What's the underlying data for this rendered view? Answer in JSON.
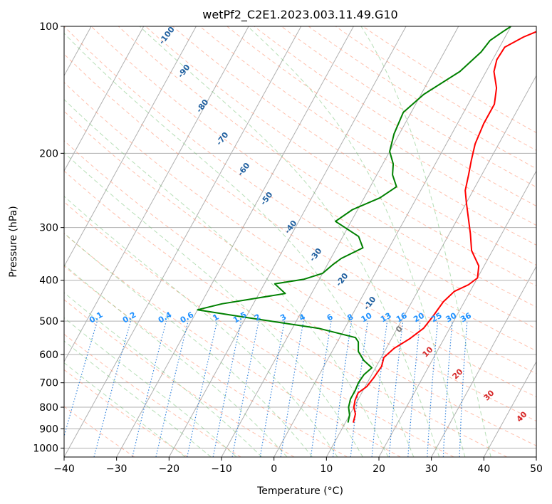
{
  "chart_data": {
    "type": "line",
    "title": "wetPf2_C2E1.2023.003.11.49.G10",
    "xlabel": "Temperature (°C)",
    "ylabel": "Pressure (hPa)",
    "xlim": [
      -40,
      50
    ],
    "ylim": [
      1050,
      100
    ],
    "y_scale": "log",
    "x_ticks": [
      -40,
      -30,
      -20,
      -10,
      0,
      10,
      20,
      30,
      40,
      50
    ],
    "y_ticks": [
      100,
      200,
      300,
      400,
      500,
      600,
      700,
      800,
      900,
      1000
    ],
    "grid": true,
    "series": [
      {
        "name": "",
        "color": "#ff0000",
        "points": [
          [
            11.5,
            870
          ],
          [
            11,
            830
          ],
          [
            10,
            800
          ],
          [
            9.5,
            770
          ],
          [
            9.3,
            740
          ],
          [
            10.3,
            715
          ],
          [
            10.7,
            680
          ],
          [
            11,
            640
          ],
          [
            10.5,
            610
          ],
          [
            11.5,
            580
          ],
          [
            13.5,
            550
          ],
          [
            15,
            520
          ],
          [
            15.5,
            490
          ],
          [
            16,
            450
          ],
          [
            17,
            425
          ],
          [
            19,
            410
          ],
          [
            20,
            395
          ],
          [
            19,
            370
          ],
          [
            16,
            340
          ],
          [
            14,
            310
          ],
          [
            12,
            285
          ],
          [
            10,
            262
          ],
          [
            8.5,
            245
          ],
          [
            7.5,
            225
          ],
          [
            6.5,
            208
          ],
          [
            5.5,
            190
          ],
          [
            5,
            170
          ],
          [
            5,
            153
          ],
          [
            3.7,
            140
          ],
          [
            1.5,
            128
          ],
          [
            0.8,
            120
          ],
          [
            1,
            112
          ],
          [
            3.5,
            106
          ],
          [
            6,
            102
          ],
          [
            6.5,
            100
          ]
        ]
      },
      {
        "name": "",
        "color": "#008000",
        "points": [
          [
            10.5,
            870
          ],
          [
            10,
            835
          ],
          [
            9,
            800
          ],
          [
            8.5,
            765
          ],
          [
            8.5,
            730
          ],
          [
            8.3,
            700
          ],
          [
            8.5,
            670
          ],
          [
            9.3,
            645
          ],
          [
            7,
            620
          ],
          [
            5,
            590
          ],
          [
            4,
            560
          ],
          [
            3,
            547
          ],
          [
            -5,
            520
          ],
          [
            -20,
            490
          ],
          [
            -30,
            470
          ],
          [
            -26,
            455
          ],
          [
            -15,
            430
          ],
          [
            -18,
            408
          ],
          [
            -13,
            398
          ],
          [
            -10,
            385
          ],
          [
            -9,
            368
          ],
          [
            -8,
            355
          ],
          [
            -5,
            335
          ],
          [
            -7,
            315
          ],
          [
            -13,
            290
          ],
          [
            -11,
            272
          ],
          [
            -7,
            255
          ],
          [
            -5,
            240
          ],
          [
            -7,
            225
          ],
          [
            -8,
            212
          ],
          [
            -10,
            198
          ],
          [
            -11,
            180
          ],
          [
            -11.5,
            160
          ],
          [
            -9.5,
            145
          ],
          [
            -5,
            128
          ],
          [
            -3,
            115
          ],
          [
            -2.5,
            108
          ],
          [
            -1,
            103
          ],
          [
            0,
            100
          ]
        ]
      }
    ],
    "dry_adiabat_labels": [
      "-100",
      "-90",
      "-80",
      "-70",
      "-60",
      "-50",
      "-40",
      "-30",
      "-20",
      "-10"
    ],
    "mixing_ratio_labels": [
      "0.1",
      "0.2",
      "0.4",
      "0.6",
      "1",
      "1.5",
      "2",
      "3",
      "4",
      "6",
      "8",
      "10",
      "13",
      "16",
      "20",
      "25",
      "30",
      "36"
    ],
    "moist_adiabat_labels": [
      "0",
      "10",
      "20",
      "30",
      "40"
    ],
    "colors": {
      "temperature": "#ff0000",
      "dewpoint": "#008000",
      "isotherm": "#7f7f7f",
      "dry_adiabat": "#ff8c69",
      "moist_adiabat": "#6fbf6f",
      "mixing_ratio": "#1f77d8",
      "dry_label": "#1f5f9f",
      "moist_label": "#d62728",
      "mix_label": "#1e90ff"
    }
  }
}
